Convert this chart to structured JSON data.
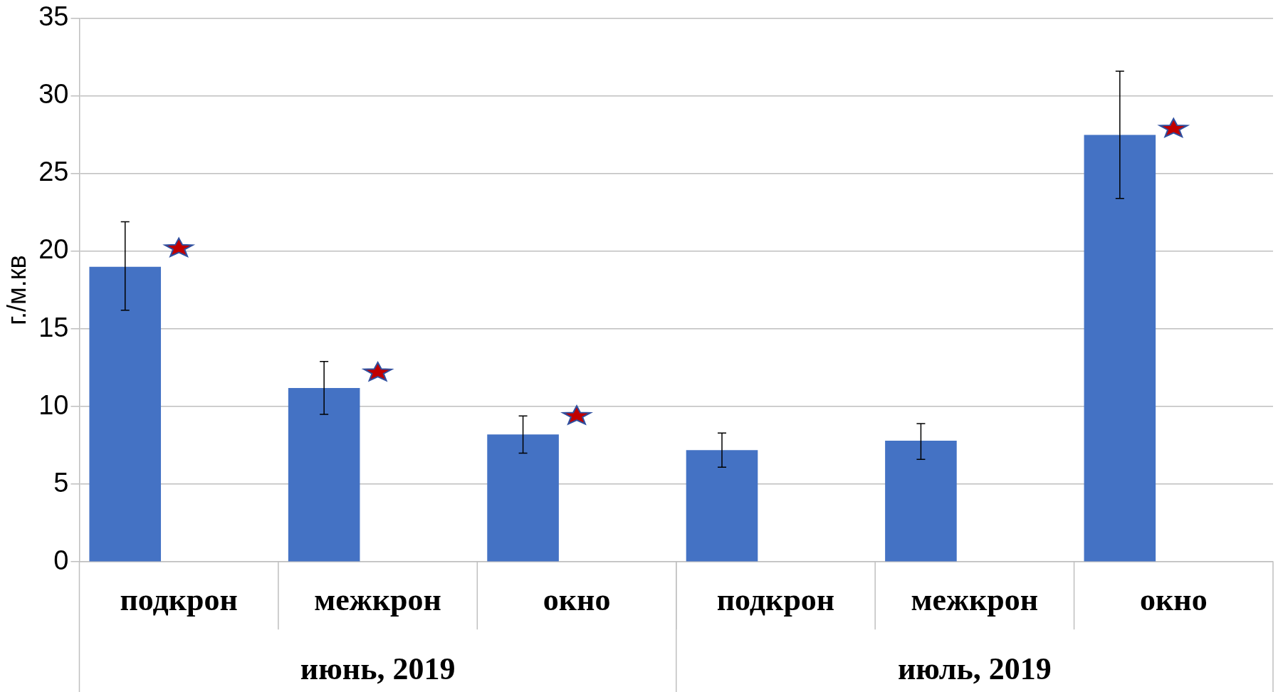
{
  "chart_data": {
    "type": "bar",
    "ylabel": "г./м.кв",
    "categories": [
      "подкрон",
      "межкрон",
      "окно",
      "подкрон",
      "межкрон",
      "окно"
    ],
    "series": [
      {
        "color": "#4472c4",
        "values": [
          19,
          11.2,
          8.2,
          7.2,
          7.8,
          27.5
        ],
        "errors": [
          [
            16.2,
            21.9
          ],
          [
            9.5,
            12.9
          ],
          [
            7.0,
            9.4
          ],
          [
            6.1,
            8.3
          ],
          [
            6.6,
            8.9
          ],
          [
            23.4,
            31.6
          ]
        ]
      },
      {
        "type": "scatter",
        "color": "#c00000",
        "marker": "star",
        "values": [
          20.2,
          12.2,
          9.4,
          null,
          null,
          27.9
        ]
      }
    ],
    "annotations": [
      "июнь, 2019",
      "июль, 2019"
    ],
    "ylim": [
      0,
      35
    ],
    "yticks": [
      0,
      5,
      10,
      15,
      20,
      25,
      30,
      35
    ],
    "grid": "y"
  }
}
